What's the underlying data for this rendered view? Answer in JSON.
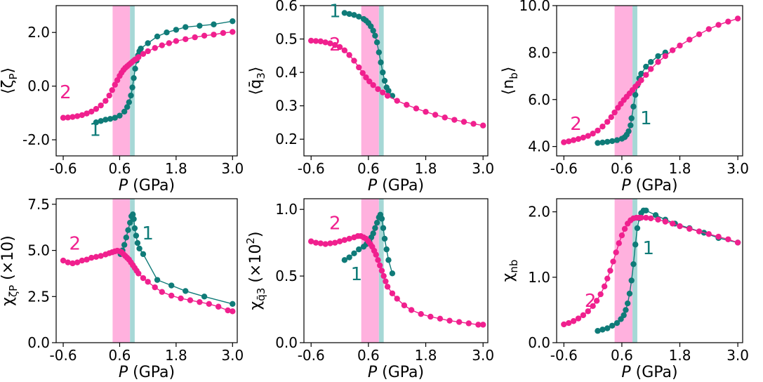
{
  "colors": {
    "series_1": "#0f7b78",
    "series_2": "#f0208e",
    "band_2": "#ffb1de",
    "band_1": "#a6d8d6"
  },
  "chart_data": [
    {
      "type": "line",
      "ylabel": "⟨ζ_P⟩",
      "xlabel": "P (GPa)",
      "xlim": [
        -0.75,
        3.1
      ],
      "ylim": [
        -2.6,
        3.0
      ],
      "xticks": [
        -0.6,
        0.6,
        1.8,
        3.0
      ],
      "xtick_labels": [
        "-0.6",
        "0.6",
        "1.8",
        "3.0"
      ],
      "yticks": [
        -2.0,
        0.0,
        2.0
      ],
      "ytick_labels": [
        "-2.0",
        "0.0",
        "2.0"
      ],
      "bands": [
        {
          "name": "2",
          "x0": 0.45,
          "x1": 0.82
        },
        {
          "name": "1",
          "x0": 0.82,
          "x1": 0.92
        }
      ],
      "curve_labels": [
        {
          "text": "2",
          "x": -0.55,
          "y": -0.45
        },
        {
          "text": "1",
          "x": 0.08,
          "y": -1.85
        }
      ],
      "series": [
        {
          "name": "1",
          "x": [
            0.1,
            0.2,
            0.3,
            0.4,
            0.5,
            0.6,
            0.7,
            0.76,
            0.8,
            0.84,
            0.87,
            0.9,
            0.93,
            0.96,
            0.99,
            1.02,
            1.05,
            1.2,
            1.4,
            1.6,
            1.8,
            2.0,
            2.3,
            2.6,
            3.0
          ],
          "y": [
            -1.35,
            -1.3,
            -1.25,
            -1.22,
            -1.18,
            -1.1,
            -0.95,
            -0.78,
            -0.6,
            -0.35,
            -0.05,
            0.3,
            0.65,
            0.95,
            1.15,
            1.3,
            1.4,
            1.6,
            1.85,
            2.0,
            2.1,
            2.2,
            2.25,
            2.3,
            2.42
          ]
        },
        {
          "name": "2",
          "x": [
            -0.6,
            -0.5,
            -0.4,
            -0.3,
            -0.2,
            -0.1,
            0.0,
            0.1,
            0.2,
            0.3,
            0.38,
            0.44,
            0.5,
            0.55,
            0.6,
            0.64,
            0.68,
            0.72,
            0.76,
            0.8,
            0.84,
            0.88,
            0.92,
            0.96,
            1.0,
            1.1,
            1.2,
            1.35,
            1.5,
            1.65,
            1.8,
            2.0,
            2.2,
            2.4,
            2.6,
            2.8,
            3.0
          ],
          "y": [
            -1.18,
            -1.17,
            -1.15,
            -1.12,
            -1.08,
            -1.02,
            -0.95,
            -0.85,
            -0.72,
            -0.55,
            -0.35,
            -0.15,
            0.05,
            0.22,
            0.38,
            0.5,
            0.6,
            0.68,
            0.74,
            0.8,
            0.86,
            0.92,
            0.98,
            1.02,
            1.08,
            1.2,
            1.3,
            1.42,
            1.52,
            1.6,
            1.68,
            1.75,
            1.82,
            1.88,
            1.92,
            1.98,
            2.02
          ]
        }
      ]
    },
    {
      "type": "line",
      "ylabel": "⟨q̄₃⟩",
      "xlabel": "P (GPa)",
      "xlim": [
        -0.75,
        3.1
      ],
      "ylim": [
        0.15,
        0.6
      ],
      "xticks": [
        -0.6,
        0.6,
        1.8,
        3.0
      ],
      "xtick_labels": [
        "-0.6",
        "0.6",
        "1.8",
        "3.0"
      ],
      "yticks": [
        0.2,
        0.3,
        0.4,
        0.5,
        0.6
      ],
      "ytick_labels": [
        "0.2",
        "0.3",
        "0.4",
        "0.5",
        "0.6"
      ],
      "bands": [
        {
          "name": "2",
          "x0": 0.45,
          "x1": 0.82
        },
        {
          "name": "1",
          "x0": 0.82,
          "x1": 0.92
        }
      ],
      "curve_labels": [
        {
          "text": "1",
          "x": -0.1,
          "y": 0.565
        },
        {
          "text": "2",
          "x": -0.1,
          "y": 0.465
        }
      ],
      "series": [
        {
          "name": "1",
          "x": [
            0.1,
            0.2,
            0.3,
            0.4,
            0.5,
            0.55,
            0.6,
            0.65,
            0.7,
            0.74,
            0.78,
            0.82,
            0.86,
            0.9,
            0.94,
            0.98,
            1.02,
            1.1
          ],
          "y": [
            0.578,
            0.575,
            0.572,
            0.567,
            0.56,
            0.555,
            0.548,
            0.538,
            0.525,
            0.51,
            0.49,
            0.46,
            0.43,
            0.4,
            0.375,
            0.355,
            0.345,
            0.33
          ]
        },
        {
          "name": "2",
          "x": [
            -0.6,
            -0.5,
            -0.4,
            -0.3,
            -0.2,
            -0.1,
            0.0,
            0.1,
            0.2,
            0.3,
            0.4,
            0.48,
            0.55,
            0.62,
            0.7,
            0.8,
            0.9,
            1.0,
            1.2,
            1.4,
            1.6,
            1.8,
            2.0,
            2.2,
            2.4,
            2.6,
            2.8,
            3.0
          ],
          "y": [
            0.495,
            0.494,
            0.493,
            0.49,
            0.487,
            0.482,
            0.476,
            0.466,
            0.452,
            0.435,
            0.415,
            0.398,
            0.385,
            0.373,
            0.362,
            0.35,
            0.34,
            0.33,
            0.315,
            0.303,
            0.292,
            0.282,
            0.273,
            0.265,
            0.258,
            0.252,
            0.246,
            0.241
          ]
        }
      ]
    },
    {
      "type": "line",
      "ylabel": "⟨n_b⟩",
      "xlabel": "P (GPa)",
      "xlim": [
        -0.75,
        3.1
      ],
      "ylim": [
        3.6,
        10.0
      ],
      "xticks": [
        -0.6,
        0.6,
        1.8,
        3.0
      ],
      "xtick_labels": [
        "-0.6",
        "0.6",
        "1.8",
        "3.0"
      ],
      "yticks": [
        4.0,
        6.0,
        8.0,
        10.0
      ],
      "ytick_labels": [
        "4.0",
        "6.0",
        "8.0",
        "10.0"
      ],
      "bands": [
        {
          "name": "2",
          "x0": 0.45,
          "x1": 0.82
        },
        {
          "name": "1",
          "x0": 0.82,
          "x1": 0.92
        }
      ],
      "curve_labels": [
        {
          "text": "2",
          "x": -0.35,
          "y": 4.7
        },
        {
          "text": "1",
          "x": 1.1,
          "y": 4.95
        }
      ],
      "series": [
        {
          "name": "1",
          "x": [
            0.1,
            0.2,
            0.3,
            0.4,
            0.5,
            0.6,
            0.66,
            0.7,
            0.74,
            0.78,
            0.8,
            0.84,
            0.88,
            0.92,
            0.96,
            1.0,
            1.1,
            1.2,
            1.35,
            1.5
          ],
          "y": [
            4.15,
            4.17,
            4.2,
            4.23,
            4.27,
            4.33,
            4.4,
            4.5,
            4.65,
            4.9,
            5.2,
            5.7,
            6.2,
            6.6,
            6.9,
            7.1,
            7.4,
            7.6,
            7.85,
            8.0
          ]
        },
        {
          "name": "2",
          "x": [
            -0.6,
            -0.5,
            -0.4,
            -0.3,
            -0.2,
            -0.1,
            0.0,
            0.1,
            0.2,
            0.3,
            0.38,
            0.45,
            0.52,
            0.58,
            0.64,
            0.7,
            0.76,
            0.82,
            0.88,
            0.94,
            1.0,
            1.1,
            1.2,
            1.35,
            1.5,
            1.65,
            1.8,
            2.0,
            2.2,
            2.4,
            2.6,
            2.8,
            3.0
          ],
          "y": [
            4.18,
            4.22,
            4.27,
            4.32,
            4.38,
            4.45,
            4.55,
            4.68,
            4.85,
            5.05,
            5.25,
            5.45,
            5.65,
            5.82,
            5.98,
            6.12,
            6.26,
            6.4,
            6.55,
            6.68,
            6.82,
            7.05,
            7.3,
            7.6,
            7.85,
            8.1,
            8.3,
            8.55,
            8.78,
            9.0,
            9.18,
            9.32,
            9.45
          ]
        }
      ]
    },
    {
      "type": "line",
      "ylabel": "χ_ζP (×10)",
      "xlabel": "P (GPa)",
      "xlim": [
        -0.75,
        3.1
      ],
      "ylim": [
        0.0,
        7.8
      ],
      "xticks": [
        -0.6,
        0.6,
        1.8,
        3.0
      ],
      "xtick_labels": [
        "-0.6",
        "0.6",
        "1.8",
        "3.0"
      ],
      "yticks": [
        0.0,
        2.5,
        5.0,
        7.5
      ],
      "ytick_labels": [
        "0.0",
        "2.5",
        "5.0",
        "7.5"
      ],
      "bands": [
        {
          "name": "2",
          "x0": 0.45,
          "x1": 0.82
        },
        {
          "name": "1",
          "x0": 0.82,
          "x1": 0.92
        }
      ],
      "curve_labels": [
        {
          "text": "2",
          "x": -0.35,
          "y": 5.05
        },
        {
          "text": "1",
          "x": 1.2,
          "y": 5.6
        }
      ],
      "series": [
        {
          "name": "1",
          "x": [
            0.62,
            0.66,
            0.7,
            0.74,
            0.78,
            0.82,
            0.85,
            0.88,
            0.9,
            0.92,
            0.95,
            0.98,
            1.02,
            1.1,
            1.4,
            1.7,
            2.0,
            2.4,
            3.0
          ],
          "y": [
            4.8,
            5.0,
            5.3,
            5.7,
            6.1,
            6.5,
            6.85,
            6.95,
            6.7,
            6.2,
            5.8,
            5.4,
            5.1,
            4.8,
            3.4,
            3.1,
            2.8,
            2.5,
            2.1
          ]
        },
        {
          "name": "2",
          "x": [
            -0.6,
            -0.5,
            -0.4,
            -0.3,
            -0.2,
            -0.1,
            0.0,
            0.1,
            0.2,
            0.3,
            0.38,
            0.44,
            0.5,
            0.55,
            0.6,
            0.64,
            0.68,
            0.72,
            0.76,
            0.8,
            0.84,
            0.88,
            0.92,
            0.96,
            1.0,
            1.1,
            1.2,
            1.35,
            1.5,
            1.7,
            1.9,
            2.1,
            2.3,
            2.5,
            2.7,
            2.9,
            3.0
          ],
          "y": [
            4.45,
            4.35,
            4.3,
            4.35,
            4.45,
            4.5,
            4.6,
            4.65,
            4.7,
            4.78,
            4.85,
            4.9,
            4.95,
            4.98,
            4.95,
            4.9,
            4.8,
            4.7,
            4.6,
            4.5,
            4.35,
            4.2,
            4.05,
            3.9,
            3.75,
            3.5,
            3.3,
            3.0,
            2.75,
            2.55,
            2.4,
            2.3,
            2.2,
            2.1,
            1.95,
            1.75,
            1.7
          ]
        }
      ]
    },
    {
      "type": "line",
      "ylabel": "χ_q̄₃ (×10²)",
      "xlabel": "P (GPa)",
      "xlim": [
        -0.75,
        3.1
      ],
      "ylim": [
        0.0,
        1.08
      ],
      "xticks": [
        -0.6,
        0.6,
        1.8,
        3.0
      ],
      "xtick_labels": [
        "-0.6",
        "0.6",
        "1.8",
        "3.0"
      ],
      "yticks": [
        0.0,
        0.5,
        1.0
      ],
      "ytick_labels": [
        "0.0",
        "0.5",
        "1.0"
      ],
      "bands": [
        {
          "name": "2",
          "x0": 0.45,
          "x1": 0.82
        },
        {
          "name": "1",
          "x0": 0.82,
          "x1": 0.92
        }
      ],
      "curve_labels": [
        {
          "text": "2",
          "x": -0.1,
          "y": 0.85
        },
        {
          "text": "1",
          "x": 0.35,
          "y": 0.47
        }
      ],
      "series": [
        {
          "name": "1",
          "x": [
            0.1,
            0.2,
            0.3,
            0.4,
            0.5,
            0.56,
            0.62,
            0.66,
            0.7,
            0.74,
            0.78,
            0.82,
            0.85,
            0.88,
            0.91,
            0.94,
            0.98,
            1.02,
            1.1
          ],
          "y": [
            0.62,
            0.64,
            0.67,
            0.7,
            0.72,
            0.74,
            0.76,
            0.79,
            0.82,
            0.86,
            0.9,
            0.94,
            0.96,
            0.93,
            0.86,
            0.78,
            0.7,
            0.62,
            0.52
          ]
        },
        {
          "name": "2",
          "x": [
            -0.6,
            -0.5,
            -0.4,
            -0.3,
            -0.2,
            -0.1,
            0.0,
            0.1,
            0.2,
            0.3,
            0.38,
            0.44,
            0.5,
            0.55,
            0.6,
            0.64,
            0.68,
            0.72,
            0.76,
            0.8,
            0.84,
            0.88,
            0.92,
            0.96,
            1.0,
            1.1,
            1.2,
            1.35,
            1.5,
            1.7,
            1.9,
            2.1,
            2.3,
            2.5,
            2.7,
            2.9,
            3.0
          ],
          "y": [
            0.76,
            0.75,
            0.745,
            0.74,
            0.745,
            0.75,
            0.76,
            0.77,
            0.78,
            0.79,
            0.8,
            0.8,
            0.79,
            0.78,
            0.76,
            0.74,
            0.72,
            0.69,
            0.66,
            0.62,
            0.58,
            0.54,
            0.5,
            0.46,
            0.42,
            0.37,
            0.33,
            0.28,
            0.245,
            0.215,
            0.195,
            0.18,
            0.165,
            0.155,
            0.145,
            0.135,
            0.135
          ]
        }
      ]
    },
    {
      "type": "line",
      "ylabel": "χ_nb",
      "xlabel": "P (GPa)",
      "xlim": [
        -0.75,
        3.1
      ],
      "ylim": [
        0.0,
        2.2
      ],
      "xticks": [
        -0.6,
        0.6,
        1.8,
        3.0
      ],
      "xtick_labels": [
        "-0.6",
        "0.6",
        "1.8",
        "3.0"
      ],
      "yticks": [
        0.0,
        1.0,
        2.0
      ],
      "ytick_labels": [
        "0.0",
        "1.0",
        "2.0"
      ],
      "bands": [
        {
          "name": "2",
          "x0": 0.45,
          "x1": 0.82
        },
        {
          "name": "1",
          "x0": 0.82,
          "x1": 0.92
        }
      ],
      "curve_labels": [
        {
          "text": "2",
          "x": -0.05,
          "y": 0.55
        },
        {
          "text": "1",
          "x": 1.15,
          "y": 1.35
        }
      ],
      "series": [
        {
          "name": "1",
          "x": [
            0.1,
            0.2,
            0.3,
            0.4,
            0.5,
            0.58,
            0.64,
            0.68,
            0.72,
            0.76,
            0.8,
            0.84,
            0.88,
            0.92,
            0.96,
            1.0,
            1.05,
            1.1,
            1.3,
            1.5,
            1.7,
            2.0,
            2.3,
            2.6,
            3.0
          ],
          "y": [
            0.18,
            0.2,
            0.22,
            0.26,
            0.3,
            0.36,
            0.42,
            0.5,
            0.6,
            0.75,
            0.95,
            1.2,
            1.5,
            1.75,
            1.9,
            1.98,
            2.02,
            2.02,
            1.95,
            1.88,
            1.82,
            1.75,
            1.68,
            1.6,
            1.53
          ]
        },
        {
          "name": "2",
          "x": [
            -0.6,
            -0.5,
            -0.4,
            -0.3,
            -0.2,
            -0.1,
            0.0,
            0.08,
            0.16,
            0.24,
            0.3,
            0.36,
            0.42,
            0.48,
            0.54,
            0.6,
            0.66,
            0.72,
            0.78,
            0.84,
            0.9,
            0.96,
            1.0,
            1.1,
            1.2,
            1.35,
            1.5,
            1.65,
            1.8,
            2.0,
            2.2,
            2.4,
            2.6,
            2.8,
            3.0
          ],
          "y": [
            0.28,
            0.3,
            0.33,
            0.37,
            0.42,
            0.48,
            0.56,
            0.64,
            0.74,
            0.86,
            0.98,
            1.1,
            1.24,
            1.38,
            1.52,
            1.64,
            1.74,
            1.82,
            1.87,
            1.9,
            1.91,
            1.91,
            1.91,
            1.91,
            1.9,
            1.88,
            1.85,
            1.82,
            1.78,
            1.74,
            1.7,
            1.66,
            1.62,
            1.58,
            1.53
          ]
        }
      ]
    }
  ]
}
